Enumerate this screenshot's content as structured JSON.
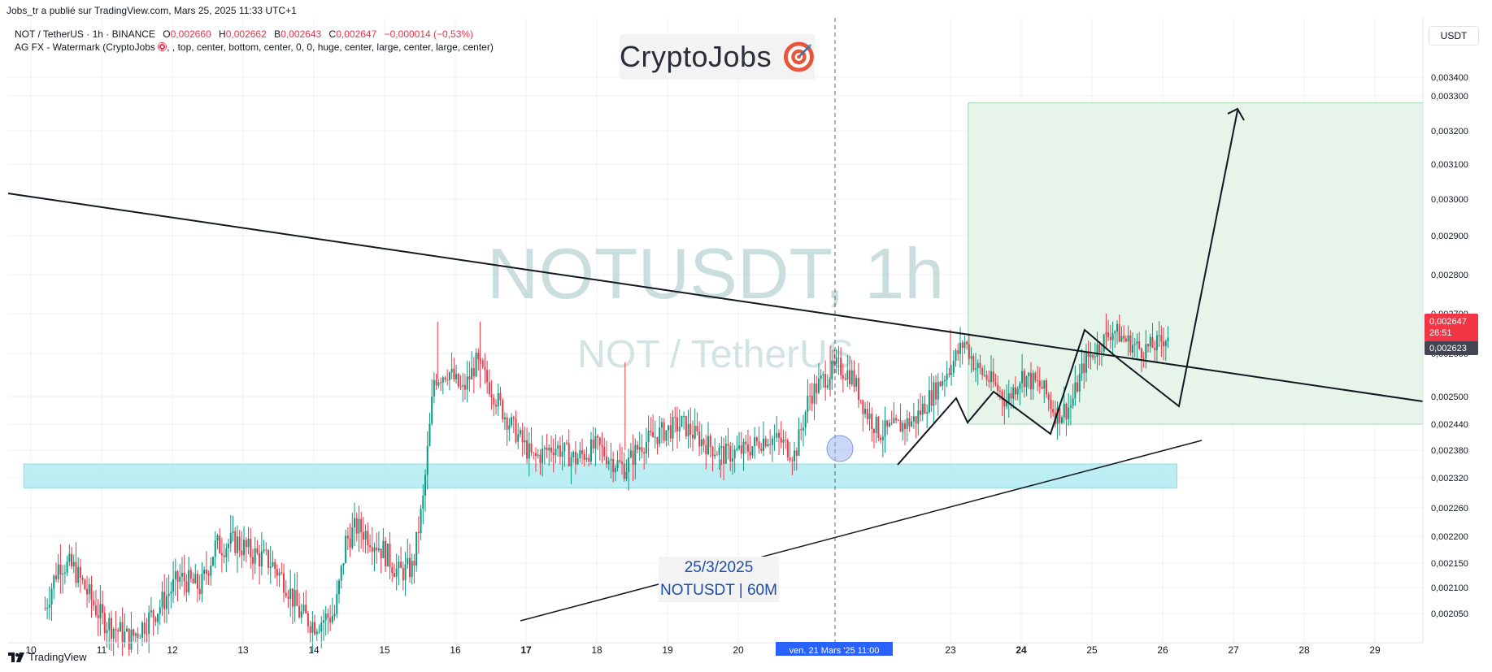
{
  "header": {
    "published": "Jobs_tr a publié sur TradingView.com, Mars 25, 2025 11:33 UTC+1"
  },
  "legend": {
    "symbol": "NOT / TetherUS · 1h · BINANCE",
    "o_label": "O",
    "o_value": "0,002660",
    "h_label": "H",
    "h_value": "0,002662",
    "b_label": "B",
    "b_value": "0,002643",
    "c_label": "C",
    "c_value": "0,002647",
    "change": "−0,000014 (−0,53%)",
    "indicator_prefix": "AG FX - Watermark (CryptoJobs",
    "indicator_suffix": ", , top, center, bottom, center, 0, 0, huge, center, large, center, large, center)"
  },
  "watermark": {
    "brand": "CryptoJobs",
    "big": "NOTUSDT, 1h",
    "sub": "NOT / TetherUS",
    "date": "25/3/2025",
    "pair": "NOTUSDT | 60M"
  },
  "currency_button": "USDT",
  "crosshair_label": "ven. 21 Mars '25   11:00",
  "price_labels": {
    "last": "0,002647",
    "countdown": "26:51",
    "second": "0,002623"
  },
  "footer": {
    "brand": "TradingView",
    "logo_icon": "tradingview-logo-icon"
  },
  "colors": {
    "up": "#089981",
    "down": "#f23645",
    "zone": "#b2ebf2",
    "target_box": "#e3f3e8",
    "price_tag": "#f23645"
  },
  "chart_data": {
    "type": "candlestick",
    "x_ticks": [
      "10",
      "11",
      "12",
      "13",
      "14",
      "15",
      "16",
      "17",
      "18",
      "19",
      "20",
      "23",
      "24",
      "25",
      "26",
      "27",
      "28",
      "29"
    ],
    "y_ticks": [
      "0,003400",
      "0,003300",
      "0,003200",
      "0,003100",
      "0,003000",
      "0,002900",
      "0,002800",
      "0,002700",
      "0,002600",
      "0,002500",
      "0,002440",
      "0,002380",
      "0,002320",
      "0,002260",
      "0,002200",
      "0,002150",
      "0,002100",
      "0,002050"
    ],
    "y_tick_values": [
      0.0034,
      0.0033,
      0.0032,
      0.0031,
      0.003,
      0.0029,
      0.0028,
      0.0027,
      0.0026,
      0.0025,
      0.00244,
      0.00238,
      0.00232,
      0.00226,
      0.0022,
      0.00215,
      0.0021,
      0.00205
    ],
    "price_path": [
      {
        "day": 10.2,
        "p": 0.00206
      },
      {
        "day": 10.4,
        "p": 0.00215
      },
      {
        "day": 10.6,
        "p": 0.00214
      },
      {
        "day": 10.8,
        "p": 0.00209
      },
      {
        "day": 11.0,
        "p": 0.00204
      },
      {
        "day": 11.4,
        "p": 0.002
      },
      {
        "day": 11.8,
        "p": 0.00206
      },
      {
        "day": 12.1,
        "p": 0.00212
      },
      {
        "day": 12.4,
        "p": 0.0021
      },
      {
        "day": 12.6,
        "p": 0.00218
      },
      {
        "day": 12.9,
        "p": 0.00219
      },
      {
        "day": 13.1,
        "p": 0.00217
      },
      {
        "day": 13.4,
        "p": 0.00215
      },
      {
        "day": 13.6,
        "p": 0.00211
      },
      {
        "day": 13.8,
        "p": 0.00205
      },
      {
        "day": 14.0,
        "p": 0.00203
      },
      {
        "day": 14.3,
        "p": 0.00205
      },
      {
        "day": 14.45,
        "p": 0.00219
      },
      {
        "day": 14.6,
        "p": 0.00222
      },
      {
        "day": 14.8,
        "p": 0.0022
      },
      {
        "day": 15.0,
        "p": 0.00217
      },
      {
        "day": 15.2,
        "p": 0.00213
      },
      {
        "day": 15.4,
        "p": 0.00214
      },
      {
        "day": 15.55,
        "p": 0.00228
      },
      {
        "day": 15.7,
        "p": 0.00254
      },
      {
        "day": 15.9,
        "p": 0.00256
      },
      {
        "day": 16.1,
        "p": 0.00251
      },
      {
        "day": 16.3,
        "p": 0.00258
      },
      {
        "day": 16.5,
        "p": 0.00252
      },
      {
        "day": 16.7,
        "p": 0.00246
      },
      {
        "day": 16.9,
        "p": 0.00241
      },
      {
        "day": 17.1,
        "p": 0.00236
      },
      {
        "day": 17.4,
        "p": 0.00239
      },
      {
        "day": 17.7,
        "p": 0.00236
      },
      {
        "day": 18.0,
        "p": 0.00239
      },
      {
        "day": 18.2,
        "p": 0.00236
      },
      {
        "day": 18.4,
        "p": 0.00234
      },
      {
        "day": 18.6,
        "p": 0.00239
      },
      {
        "day": 18.9,
        "p": 0.00242
      },
      {
        "day": 19.2,
        "p": 0.00244
      },
      {
        "day": 19.5,
        "p": 0.0024
      },
      {
        "day": 19.8,
        "p": 0.00237
      },
      {
        "day": 20.1,
        "p": 0.00238
      },
      {
        "day": 20.4,
        "p": 0.00241
      },
      {
        "day": 20.6,
        "p": 0.0024
      },
      {
        "day": 20.8,
        "p": 0.00237
      },
      {
        "day": 21.0,
        "p": 0.0025
      },
      {
        "day": 21.2,
        "p": 0.00254
      },
      {
        "day": 21.4,
        "p": 0.00257
      },
      {
        "day": 21.6,
        "p": 0.00255
      },
      {
        "day": 21.8,
        "p": 0.00247
      },
      {
        "day": 22.0,
        "p": 0.00242
      },
      {
        "day": 22.2,
        "p": 0.00243
      },
      {
        "day": 22.5,
        "p": 0.00245
      },
      {
        "day": 22.8,
        "p": 0.00252
      },
      {
        "day": 23.0,
        "p": 0.00257
      },
      {
        "day": 23.2,
        "p": 0.00263
      },
      {
        "day": 23.35,
        "p": 0.00257
      },
      {
        "day": 23.6,
        "p": 0.00253
      },
      {
        "day": 23.8,
        "p": 0.00249
      },
      {
        "day": 24.0,
        "p": 0.00255
      },
      {
        "day": 24.3,
        "p": 0.00252
      },
      {
        "day": 24.5,
        "p": 0.00246
      },
      {
        "day": 24.7,
        "p": 0.00248
      },
      {
        "day": 24.9,
        "p": 0.00258
      },
      {
        "day": 25.1,
        "p": 0.00262
      },
      {
        "day": 25.3,
        "p": 0.00266
      },
      {
        "day": 25.5,
        "p": 0.00263
      },
      {
        "day": 25.7,
        "p": 0.00261
      },
      {
        "day": 25.9,
        "p": 0.00262
      },
      {
        "day": 26.1,
        "p": 0.00265
      }
    ],
    "support_zone": {
      "low": 0.0023,
      "high": 0.00235,
      "from_day": 9.9,
      "to_day": 26.2
    },
    "target_box": {
      "low": 0.00244,
      "high": 0.00328,
      "from_day": 23.25,
      "to_day": 29.9
    }
  }
}
